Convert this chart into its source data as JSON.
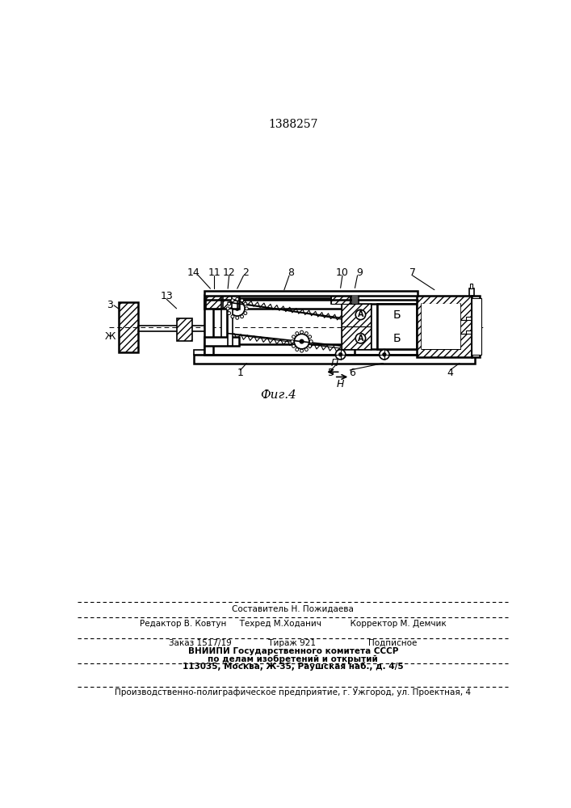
{
  "title_number": "1388257",
  "fig_caption": "Фиг.4",
  "bg_color": "#ffffff",
  "line_color": "#000000",
  "footer": {
    "line1": "Составитель Н. Пожидаева",
    "line2_left": "Редактор В. Ковтун",
    "line2_mid": "Техред М.Ходанич",
    "line2_right": "Корректор М. Демчик",
    "line3_left": "Заказ 1517/19",
    "line3_mid": "Тираж 921",
    "line3_right": "Подписное",
    "line4": "ВНИИПИ Государственного комитета СССР",
    "line5": "по делам изобретений и открытий",
    "line6": "113035, Москва, Ж-35, Раушская наб., д. 4/5",
    "line7": "Производственно-полиграфическое предприятие, г. Ужгород, ул. Проектная, 4"
  }
}
